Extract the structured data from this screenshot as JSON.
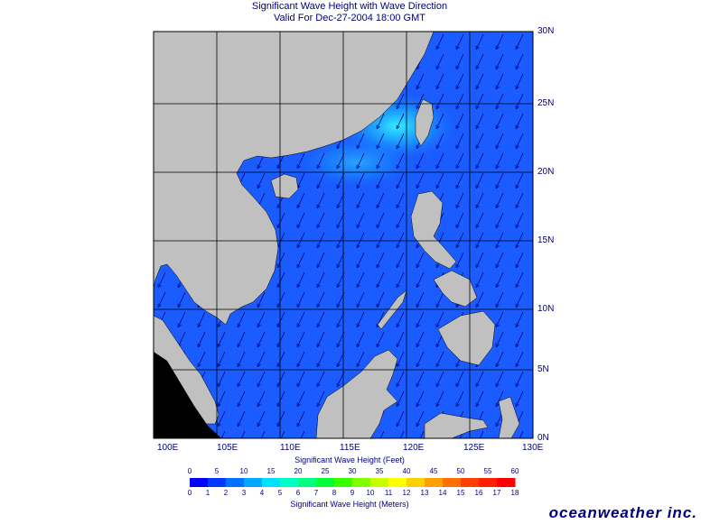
{
  "title": {
    "line1": "Significant Wave Height with Wave Direction",
    "line2": "Valid For Dec-27-2004 18:00 GMT"
  },
  "map": {
    "lon_labels": [
      "100E",
      "105E",
      "110E",
      "115E",
      "120E",
      "125E",
      "130E"
    ],
    "lat_labels": [
      "30N",
      "25N",
      "20N",
      "15N",
      "10N",
      "5N",
      "0N"
    ],
    "land_color": "#c0c0c0",
    "sea_color": "#1a5cff",
    "arrow_color": "#00007a",
    "grid_color": "#000000",
    "wave_direction": "from northeast"
  },
  "colorbar": {
    "feet_label": "Significant Wave Height (Feet)",
    "meters_label": "Significant Wave Height (Meters)",
    "feet_ticks": [
      "0",
      "5",
      "10",
      "15",
      "20",
      "25",
      "30",
      "35",
      "40",
      "45",
      "50",
      "55",
      "60"
    ],
    "meter_ticks": [
      "0",
      "1",
      "2",
      "3",
      "4",
      "5",
      "6",
      "7",
      "8",
      "9",
      "10",
      "11",
      "12",
      "13",
      "14",
      "15",
      "16",
      "17",
      "18"
    ],
    "colors": [
      "#0000ff",
      "#0038ff",
      "#0070ff",
      "#00a8ff",
      "#00e0ff",
      "#00ffc8",
      "#00ff80",
      "#00ff38",
      "#38ff00",
      "#80ff00",
      "#c8ff00",
      "#ffff00",
      "#ffd000",
      "#ffa000",
      "#ff7000",
      "#ff4000",
      "#ff2000",
      "#ff0000"
    ]
  },
  "brand": "oceanweather inc."
}
